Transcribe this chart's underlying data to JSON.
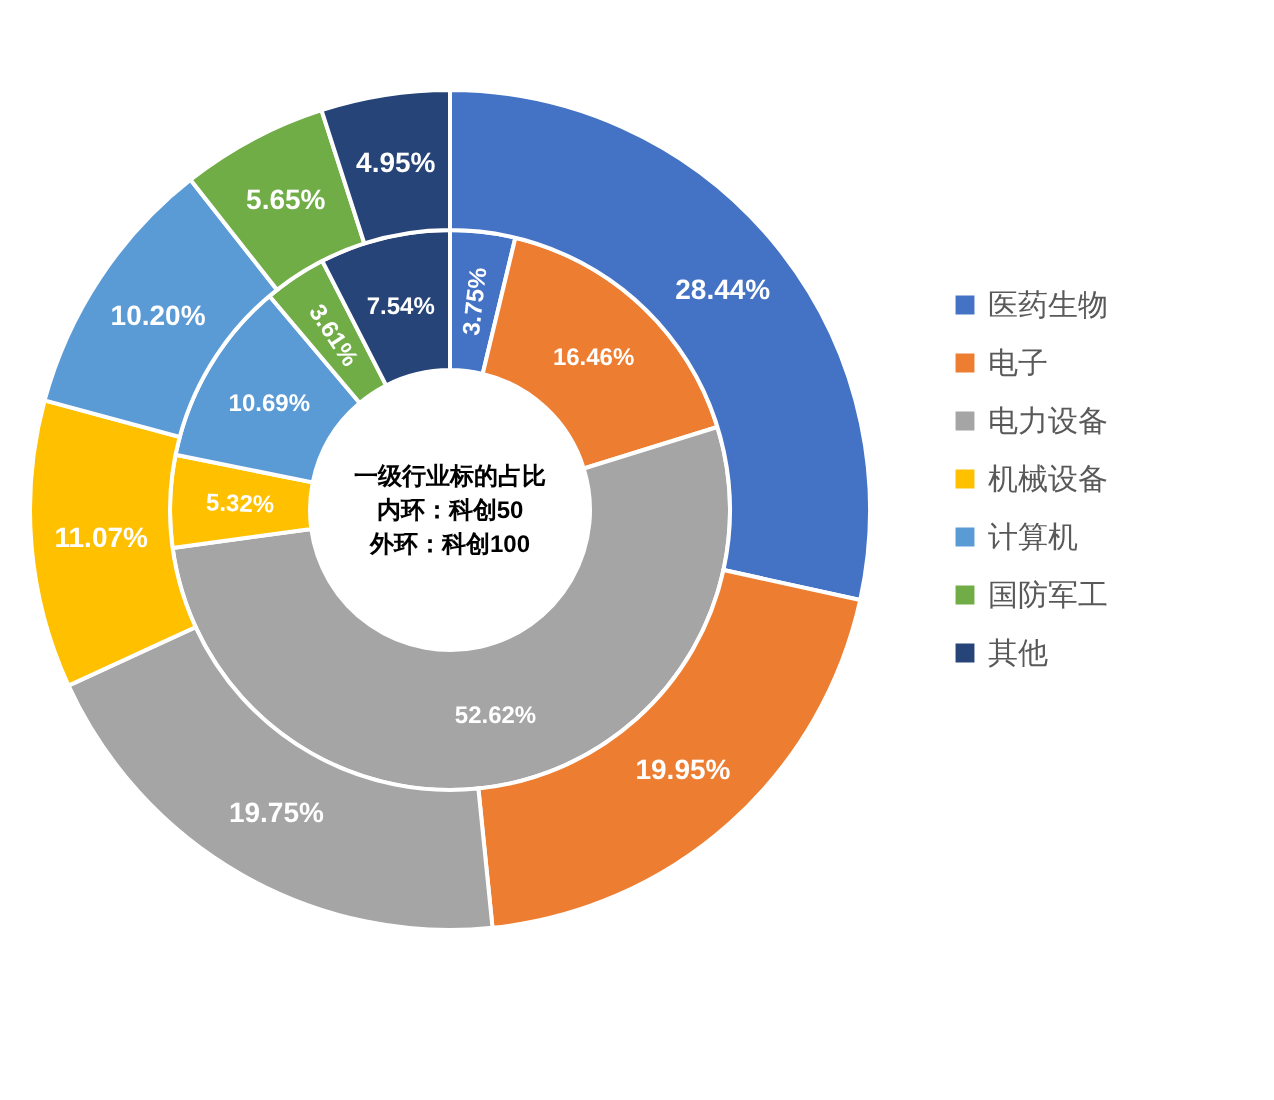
{
  "chart_data": {
    "type": "donut",
    "title": "一级行业标的占比",
    "annotations": [
      "内环：科创50",
      "外环：科创100"
    ],
    "categories": [
      "医药生物",
      "电子",
      "电力设备",
      "机械设备",
      "计算机",
      "国防军工",
      "其他"
    ],
    "colors": [
      "#4472c4",
      "#ed7d31",
      "#a5a5a5",
      "#ffc000",
      "#5b9bd5",
      "#70ad47",
      "#264478"
    ],
    "series": [
      {
        "values": [
          3.75,
          16.46,
          52.62,
          5.32,
          10.69,
          3.61,
          7.54
        ],
        "value_labels": [
          "3.75%",
          "16.46%",
          "52.62%",
          "5.32%",
          "10.69%",
          "3.61%",
          "7.54%"
        ]
      },
      {
        "values": [
          28.44,
          19.95,
          19.75,
          11.07,
          10.2,
          5.65,
          4.95
        ],
        "value_labels": [
          "28.44%",
          "19.95%",
          "19.75%",
          "11.07%",
          "10.20%",
          "5.65%",
          "4.95%"
        ]
      }
    ],
    "legend": "right"
  }
}
